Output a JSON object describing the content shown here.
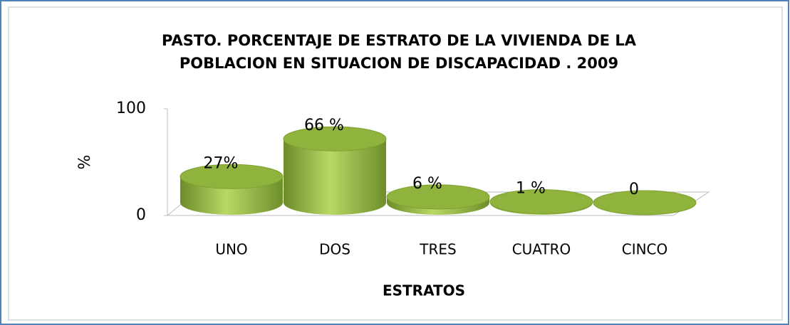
{
  "chart_data": {
    "type": "bar3d",
    "title": [
      "PASTO. PORCENTAJE  DE ESTRATO DE LA VIVIENDA DE LA",
      "POBLACION EN SITUACION DE DISCAPACIDAD . 2009"
    ],
    "categories": [
      "UNO",
      "DOS",
      "TRES",
      "CUATRO",
      "CINCO"
    ],
    "values": [
      27,
      66,
      6,
      1,
      0
    ],
    "value_labels": [
      "27%",
      "66 %",
      "6 %",
      "1 %",
      "0"
    ],
    "color": "#9bbb59",
    "ylim": [
      0,
      100
    ],
    "yticks": [
      0,
      100
    ],
    "y_label": "%",
    "x_label": "ESTRATOS"
  }
}
